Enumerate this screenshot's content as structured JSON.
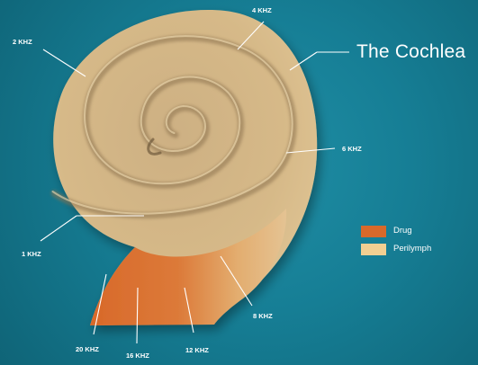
{
  "title": "The Cochlea",
  "frequency_labels": {
    "khz_4": "4 KHZ",
    "khz_2": "2 KHZ",
    "khz_6": "6 KHZ",
    "khz_1": "1 KHZ",
    "khz_8": "8 KHZ",
    "khz_20": "20 KHZ",
    "khz_16": "16 KHZ",
    "khz_12": "12 KHZ"
  },
  "legend": [
    {
      "label": "Drug",
      "color": "#d8692a"
    },
    {
      "label": "Perilymph",
      "color": "#f2cf92"
    }
  ],
  "colors": {
    "background": "#167e95",
    "cochlea": "#d9bb8a",
    "drug": "#d8692a",
    "leader_lines": "#ffffff"
  }
}
